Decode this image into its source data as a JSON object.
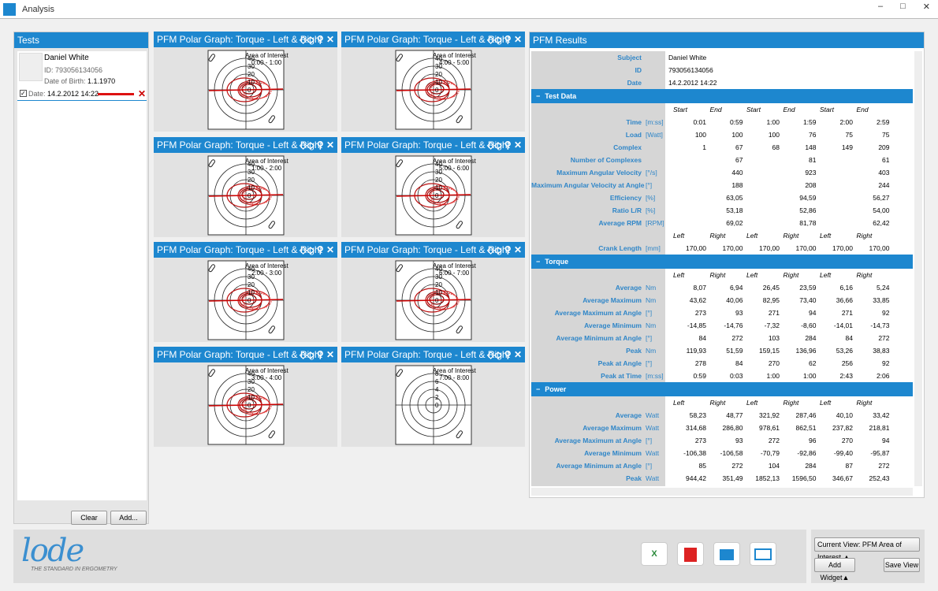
{
  "window": {
    "title": "Analysis"
  },
  "tests": {
    "title": "Tests",
    "name": "Daniel White",
    "id": "ID: 793056134056",
    "dob_label": "Date of Birth:",
    "dob": "1.1.1970",
    "date_label": "Date:",
    "date": "14.2.2012 14:22",
    "buttons": [
      "Clear",
      "Add..."
    ]
  },
  "graphs": [
    {
      "title": "PFM Polar Graph: Torque - Left & Right",
      "area": "Area of Interest",
      "range": "0:00 - 1:00",
      "rings": [
        40,
        30,
        20,
        10,
        0
      ]
    },
    {
      "title": "PFM Polar Graph: Torque - Left & Right",
      "area": "Area of Interest",
      "range": "1:00 - 2:00",
      "rings": [
        40,
        30,
        20,
        10,
        0
      ]
    },
    {
      "title": "PFM Polar Graph: Torque - Left & Right",
      "area": "Area of Interest",
      "range": "2:00 - 3:00",
      "rings": [
        40,
        30,
        20,
        10,
        0
      ]
    },
    {
      "title": "PFM Polar Graph: Torque - Left & Right",
      "area": "Area of Interest",
      "range": "3:00 - 4:00",
      "rings": [
        40,
        30,
        20,
        10,
        0
      ]
    },
    {
      "title": "PFM Polar Graph: Torque - Left & Right",
      "area": "Area of Interest",
      "range": "4:00 - 5:00",
      "rings": [
        40,
        30,
        20,
        10,
        0
      ]
    },
    {
      "title": "PFM Polar Graph: Torque - Left & Right",
      "area": "Area of Interest",
      "range": "5:00 - 6:00",
      "rings": [
        40,
        30,
        20,
        10,
        0
      ]
    },
    {
      "title": "PFM Polar Graph: Torque - Left & Right",
      "area": "Area of Interest",
      "range": "6:00 - 7:00",
      "rings": [
        40,
        30,
        20,
        10,
        0
      ]
    },
    {
      "title": "PFM Polar Graph: Torque - Left & Right",
      "area": "Area of Interest",
      "range": "7:00 - 8:00",
      "rings": [
        8,
        6,
        4,
        2,
        0
      ]
    }
  ],
  "results": {
    "title": "PFM Results",
    "info": [
      [
        "Subject",
        "Daniel White"
      ],
      [
        "ID",
        "793056134056"
      ],
      [
        "Date",
        "14.2.2012 14:22"
      ]
    ],
    "sections": [
      {
        "title": "Test Data",
        "blocks": [
          {
            "header": [
              "Start",
              "End",
              "Start",
              "End",
              "Start",
              "End"
            ],
            "rows": [
              {
                "label": "Time",
                "unit": "[m:ss]",
                "values": [
                  "0:01",
                  "0:59",
                  "1:00",
                  "1:59",
                  "2:00",
                  "2:59"
                ]
              },
              {
                "label": "Load",
                "unit": "[Watt]",
                "values": [
                  "100",
                  "100",
                  "100",
                  "76",
                  "75",
                  "75"
                ]
              },
              {
                "label": "Complex",
                "values": [
                  "1",
                  "67",
                  "68",
                  "148",
                  "149",
                  "209"
                ]
              },
              {
                "label": "Number of Complexes",
                "values": [
                  null,
                  "67",
                  null,
                  "81",
                  null,
                  "61"
                ]
              },
              {
                "label": "Maximum Angular Velocity",
                "unit": "[°/s]",
                "values": [
                  null,
                  "440",
                  null,
                  "923",
                  null,
                  "403"
                ]
              },
              {
                "label": "Maximum Angular Velocity at Angle",
                "unit": "[°]",
                "values": [
                  null,
                  "188",
                  null,
                  "208",
                  null,
                  "244"
                ]
              },
              {
                "label": "Efficiency",
                "unit": "[%]",
                "values": [
                  null,
                  "63,05",
                  null,
                  "94,59",
                  null,
                  "56,27"
                ]
              },
              {
                "label": "Ratio L/R",
                "unit": "[%]",
                "values": [
                  null,
                  "53,18",
                  null,
                  "52,86",
                  null,
                  "54,00"
                ]
              },
              {
                "label": "Average RPM",
                "unit": "[RPM]",
                "values": [
                  null,
                  "69,02",
                  null,
                  "81,78",
                  null,
                  "62,42"
                ]
              }
            ]
          },
          {
            "header": [
              "Left",
              "Right",
              "Left",
              "Right",
              "Left",
              "Right"
            ],
            "rows": [
              {
                "label": "Crank Length",
                "unit": "[mm]",
                "values": [
                  "170,00",
                  "170,00",
                  "170,00",
                  "170,00",
                  "170,00",
                  "170,00"
                ]
              }
            ]
          }
        ]
      },
      {
        "title": "Torque",
        "blocks": [
          {
            "header": [
              "Left",
              "Right",
              "Left",
              "Right",
              "Left",
              "Right"
            ],
            "rows": [
              {
                "label": "Average",
                "unit": "Nm",
                "values": [
                  "8,07",
                  "6,94",
                  "26,45",
                  "23,59",
                  "6,16",
                  "5,24"
                ]
              },
              {
                "label": "Average Maximum",
                "unit": "Nm",
                "values": [
                  "43,62",
                  "40,06",
                  "82,95",
                  "73,40",
                  "36,66",
                  "33,85"
                ]
              },
              {
                "label": "Average Maximum at Angle",
                "unit": "[°]",
                "values": [
                  "273",
                  "93",
                  "271",
                  "94",
                  "271",
                  "92"
                ]
              },
              {
                "label": "Average Minimum",
                "unit": "Nm",
                "values": [
                  "-14,85",
                  "-14,76",
                  "-7,32",
                  "-8,60",
                  "-14,01",
                  "-14,73"
                ]
              },
              {
                "label": "Average Minimum at Angle",
                "unit": "[°]",
                "values": [
                  "84",
                  "272",
                  "103",
                  "284",
                  "84",
                  "272"
                ]
              },
              {
                "label": "Peak",
                "unit": "Nm",
                "values": [
                  "119,93",
                  "51,59",
                  "159,15",
                  "136,96",
                  "53,26",
                  "38,83"
                ]
              },
              {
                "label": "Peak at Angle",
                "unit": "[°]",
                "values": [
                  "278",
                  "84",
                  "270",
                  "62",
                  "256",
                  "92"
                ]
              },
              {
                "label": "Peak at Time",
                "unit": "[m:ss]",
                "values": [
                  "0:59",
                  "0:03",
                  "1:00",
                  "1:00",
                  "2:43",
                  "2:06"
                ]
              }
            ]
          }
        ]
      },
      {
        "title": "Power",
        "blocks": [
          {
            "header": [
              "Left",
              "Right",
              "Left",
              "Right",
              "Left",
              "Right"
            ],
            "rows": [
              {
                "label": "Average",
                "unit": "Watt",
                "values": [
                  "58,23",
                  "48,77",
                  "321,92",
                  "287,46",
                  "40,10",
                  "33,42"
                ]
              },
              {
                "label": "Average Maximum",
                "unit": "Watt",
                "values": [
                  "314,68",
                  "286,80",
                  "978,61",
                  "862,51",
                  "237,82",
                  "218,81"
                ]
              },
              {
                "label": "Average Maximum at Angle",
                "unit": "[°]",
                "values": [
                  "273",
                  "93",
                  "272",
                  "96",
                  "270",
                  "94"
                ]
              },
              {
                "label": "Average Minimum",
                "unit": "Watt",
                "values": [
                  "-106,38",
                  "-106,58",
                  "-70,79",
                  "-92,86",
                  "-99,40",
                  "-95,87"
                ]
              },
              {
                "label": "Average Minimum at Angle",
                "unit": "[°]",
                "values": [
                  "85",
                  "272",
                  "104",
                  "284",
                  "87",
                  "272"
                ]
              },
              {
                "label": "Peak",
                "unit": "Watt",
                "values": [
                  "944,42",
                  "351,49",
                  "1852,13",
                  "1596,50",
                  "346,67",
                  "252,43"
                ]
              }
            ]
          }
        ]
      }
    ]
  },
  "footer": {
    "logo": "lode",
    "tagline": "THE STANDARD IN ERGOMETRY",
    "current_view": "Current View: PFM Area of Interest",
    "add_widget": "Add Widget",
    "save_view": "Save View"
  }
}
